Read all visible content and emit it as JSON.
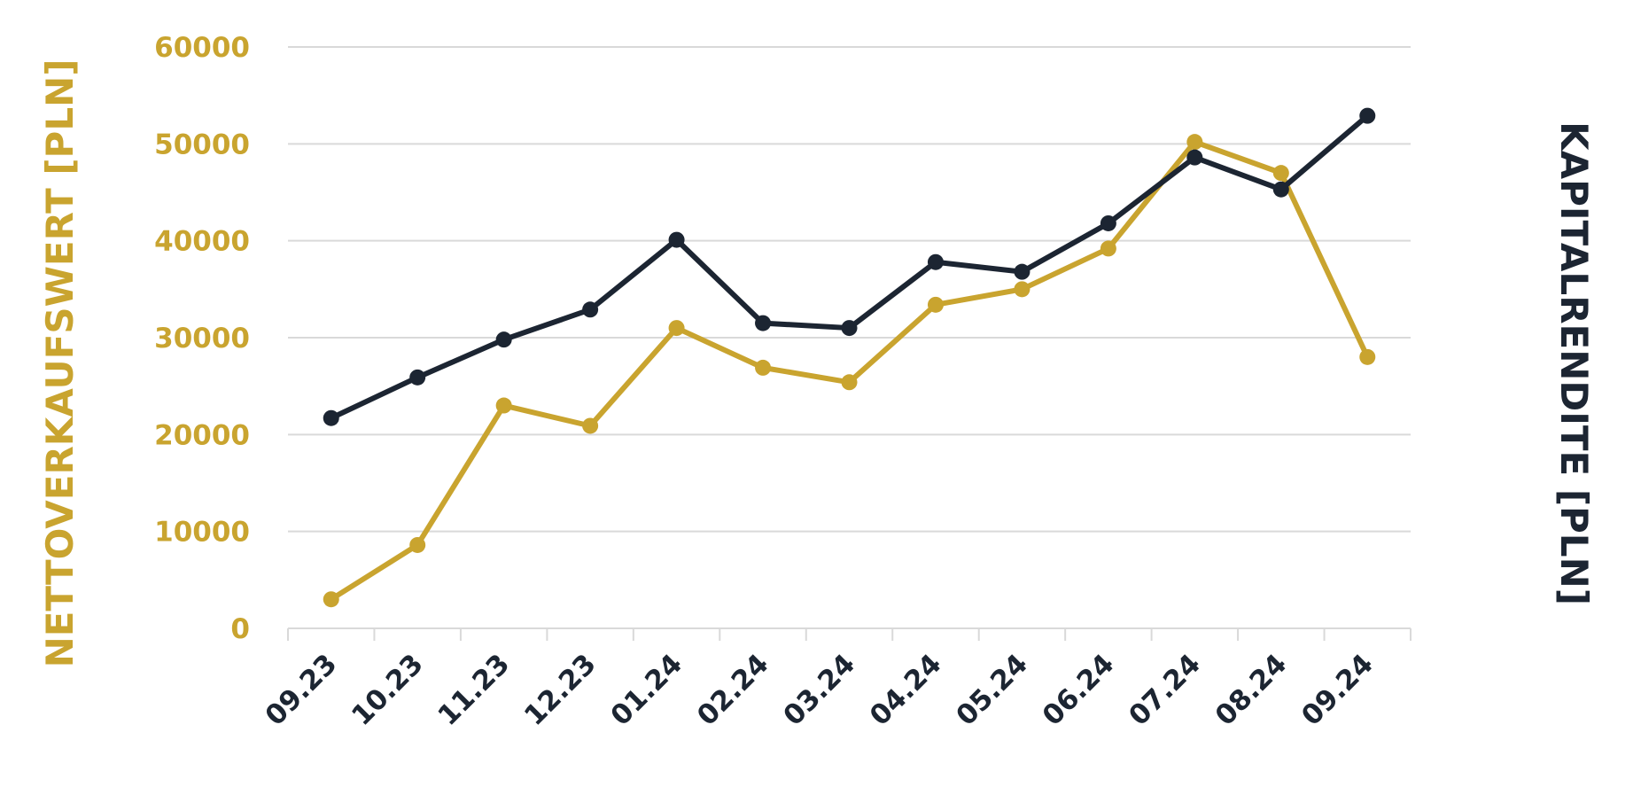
{
  "chart_data": {
    "type": "line",
    "title": "",
    "categories": [
      "09.23",
      "10.23",
      "11.23",
      "12.23",
      "01.24",
      "02.24",
      "03.24",
      "04.24",
      "05.24",
      "06.24",
      "07.24",
      "08.24",
      "09.24"
    ],
    "ylabel_left": "NETTOVERKAUFSWERT [PLN]",
    "ylabel_right": "KAPITALRENDITE [PLN]",
    "ylim": [
      0,
      60000
    ],
    "yticks": [
      "0",
      "10000",
      "20000",
      "30000",
      "40000",
      "50000",
      "60000"
    ],
    "grid": true,
    "legend": "none",
    "series": [
      {
        "axis": "left",
        "color": "#c9a42f",
        "values": [
          3000,
          8600,
          23000,
          20900,
          31000,
          26900,
          25400,
          33400,
          35000,
          39200,
          50200,
          47000,
          28000
        ]
      },
      {
        "axis": "right",
        "color": "#1c2532",
        "values": [
          21700,
          25900,
          29800,
          32900,
          40100,
          31500,
          31000,
          37800,
          36800,
          41800,
          48600,
          45300,
          52900
        ]
      }
    ],
    "colors": {
      "left_axis": "#c9a42f",
      "right_axis": "#1c2532",
      "grid": "#d9d9d9",
      "x_ticks": "#1c2532"
    }
  }
}
